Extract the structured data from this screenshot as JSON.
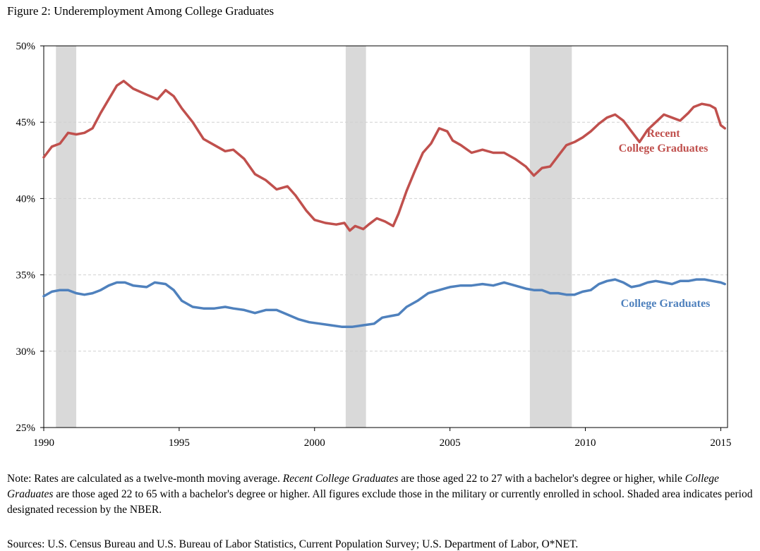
{
  "figure_title": "Figure 2: Underemployment Among College Graduates",
  "note": {
    "part1": "Note: Rates are calculated as a twelve-month moving average. ",
    "recent_term": "Recent College Graduates",
    "part2": " are those aged 22 to 27 with a bachelor's degree or higher, while ",
    "grads_term": "College Graduates",
    "part3": " are those aged 22 to 65 with a bachelor's degree or higher. All figures exclude those in the military or currently enrolled in school. Shaded area indicates period designated recession by the NBER."
  },
  "sources": "Sources: U.S. Census Bureau and U.S. Bureau of Labor Statistics, Current Population Survey; U.S. Department of Labor, O*NET.",
  "chart_data": {
    "type": "line",
    "title": "Figure 2: Underemployment Among College Graduates",
    "xlabel": "",
    "ylabel": "",
    "xlim": [
      1990,
      2015.25
    ],
    "ylim": [
      25,
      50
    ],
    "x_ticks": [
      1990,
      1995,
      2000,
      2005,
      2010,
      2015
    ],
    "x_tick_labels": [
      "1990",
      "1995",
      "2000",
      "2005",
      "2010",
      "2015"
    ],
    "y_ticks": [
      25,
      30,
      35,
      40,
      45,
      50
    ],
    "y_tick_labels": [
      "25%",
      "30%",
      "35%",
      "40%",
      "45%",
      "50%"
    ],
    "grid": "horizontal dashed",
    "recessions": [
      [
        1990.45,
        1991.2
      ],
      [
        2001.15,
        2001.9
      ],
      [
        2007.95,
        2009.5
      ]
    ],
    "series": [
      {
        "name": "Recent College Graduates",
        "label_lines": [
          "Recent",
          "College Graduates"
        ],
        "color": "#c0504d",
        "x": [
          1990.0,
          1990.3,
          1990.6,
          1990.9,
          1991.2,
          1991.5,
          1991.8,
          1992.1,
          1992.4,
          1992.7,
          1992.95,
          1993.3,
          1993.8,
          1994.2,
          1994.5,
          1994.8,
          1995.1,
          1995.5,
          1995.9,
          1996.3,
          1996.7,
          1997.0,
          1997.4,
          1997.8,
          1998.2,
          1998.6,
          1999.0,
          1999.3,
          1999.7,
          2000.0,
          2000.4,
          2000.8,
          2001.1,
          2001.3,
          2001.5,
          2001.8,
          2002.0,
          2002.3,
          2002.6,
          2002.9,
          2003.1,
          2003.4,
          2003.7,
          2004.0,
          2004.3,
          2004.6,
          2004.9,
          2005.1,
          2005.4,
          2005.8,
          2006.2,
          2006.6,
          2007.0,
          2007.4,
          2007.8,
          2008.1,
          2008.4,
          2008.7,
          2009.0,
          2009.3,
          2009.6,
          2009.9,
          2010.2,
          2010.5,
          2010.8,
          2011.1,
          2011.4,
          2011.7,
          2012.0,
          2012.3,
          2012.6,
          2012.9,
          2013.2,
          2013.5,
          2013.8,
          2014.0,
          2014.3,
          2014.6,
          2014.8,
          2015.0,
          2015.15
        ],
        "values": [
          42.7,
          43.4,
          43.6,
          44.3,
          44.2,
          44.3,
          44.6,
          45.6,
          46.5,
          47.4,
          47.7,
          47.2,
          46.8,
          46.5,
          47.1,
          46.7,
          45.9,
          45.0,
          43.9,
          43.5,
          43.1,
          43.2,
          42.6,
          41.6,
          41.2,
          40.6,
          40.8,
          40.2,
          39.2,
          38.6,
          38.4,
          38.3,
          38.4,
          37.9,
          38.2,
          38.0,
          38.3,
          38.7,
          38.5,
          38.2,
          39.0,
          40.5,
          41.8,
          43.0,
          43.6,
          44.6,
          44.4,
          43.8,
          43.5,
          43.0,
          43.2,
          43.0,
          43.0,
          42.6,
          42.1,
          41.5,
          42.0,
          42.1,
          42.8,
          43.5,
          43.7,
          44.0,
          44.4,
          44.9,
          45.3,
          45.5,
          45.1,
          44.4,
          43.7,
          44.5,
          45.0,
          45.5,
          45.3,
          45.1,
          45.6,
          46.0,
          46.2,
          46.1,
          45.9,
          44.8,
          44.6
        ],
        "annotations": []
      },
      {
        "name": "College Graduates",
        "label_lines": [
          "College Graduates"
        ],
        "color": "#4f81bd",
        "x": [
          1990.0,
          1990.3,
          1990.6,
          1990.9,
          1991.2,
          1991.5,
          1991.8,
          1992.1,
          1992.4,
          1992.7,
          1993.0,
          1993.3,
          1993.8,
          1994.1,
          1994.5,
          1994.8,
          1995.1,
          1995.5,
          1995.9,
          1996.3,
          1996.7,
          1997.0,
          1997.4,
          1997.8,
          1998.2,
          1998.6,
          1999.0,
          1999.4,
          1999.8,
          2000.2,
          2000.6,
          2001.0,
          2001.4,
          2001.8,
          2002.2,
          2002.5,
          2002.8,
          2003.1,
          2003.4,
          2003.8,
          2004.2,
          2004.6,
          2005.0,
          2005.4,
          2005.8,
          2006.2,
          2006.6,
          2007.0,
          2007.4,
          2007.8,
          2008.1,
          2008.4,
          2008.7,
          2009.0,
          2009.3,
          2009.6,
          2009.9,
          2010.2,
          2010.5,
          2010.8,
          2011.1,
          2011.4,
          2011.7,
          2012.0,
          2012.3,
          2012.6,
          2012.9,
          2013.2,
          2013.5,
          2013.8,
          2014.1,
          2014.4,
          2014.7,
          2015.0,
          2015.15
        ],
        "values": [
          33.6,
          33.9,
          34.0,
          34.0,
          33.8,
          33.7,
          33.8,
          34.0,
          34.3,
          34.5,
          34.5,
          34.3,
          34.2,
          34.5,
          34.4,
          34.0,
          33.3,
          32.9,
          32.8,
          32.8,
          32.9,
          32.8,
          32.7,
          32.5,
          32.7,
          32.7,
          32.4,
          32.1,
          31.9,
          31.8,
          31.7,
          31.6,
          31.6,
          31.7,
          31.8,
          32.2,
          32.3,
          32.4,
          32.9,
          33.3,
          33.8,
          34.0,
          34.2,
          34.3,
          34.3,
          34.4,
          34.3,
          34.5,
          34.3,
          34.1,
          34.0,
          34.0,
          33.8,
          33.8,
          33.7,
          33.7,
          33.9,
          34.0,
          34.4,
          34.6,
          34.7,
          34.5,
          34.2,
          34.3,
          34.5,
          34.6,
          34.5,
          34.4,
          34.6,
          34.6,
          34.7,
          34.7,
          34.6,
          34.5,
          34.4
        ],
        "annotations": []
      }
    ]
  }
}
